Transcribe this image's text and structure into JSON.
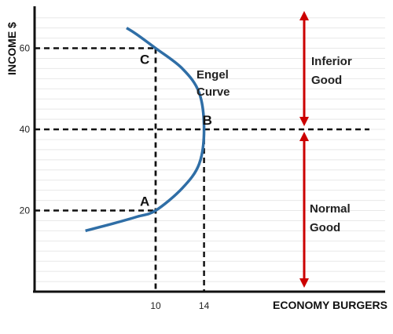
{
  "chart_data": {
    "type": "line",
    "xlabel": "ECONOMY BURGERS",
    "ylabel": "INCOME $",
    "x_ticks": [
      "10",
      "14"
    ],
    "y_ticks": [
      "20",
      "40",
      "60"
    ],
    "series": [
      {
        "name": "Engel Curve",
        "label_lines": [
          "Engel",
          "Curve"
        ],
        "x": [
          4.2,
          6.5,
          8.5,
          10,
          12.2,
          13.6,
          14,
          13.6,
          12.2,
          10,
          8.4,
          7.6
        ],
        "y": [
          15,
          16.8,
          18.5,
          20,
          25.5,
          31.5,
          40,
          49,
          55,
          60,
          63.5,
          65
        ],
        "color": "#2f6ea6"
      }
    ],
    "points": [
      {
        "label": "A",
        "x": 10,
        "y": 20
      },
      {
        "label": "B",
        "x": 14,
        "y": 40
      },
      {
        "label": "C",
        "x": 10,
        "y": 60
      }
    ],
    "annotations": [
      {
        "lines": [
          "Inferior",
          "Good"
        ],
        "color": "#cc0000"
      },
      {
        "lines": [
          "Normal",
          "Good"
        ],
        "color": "#cc0000"
      }
    ],
    "xlim": [
      0,
      30
    ],
    "ylim": [
      0,
      70
    ],
    "grid": true
  }
}
